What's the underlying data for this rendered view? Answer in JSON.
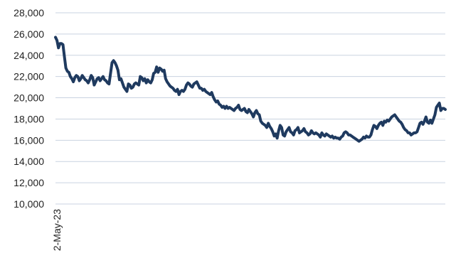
{
  "chart_data": {
    "type": "line",
    "title": "",
    "xlabel": "",
    "ylabel": "",
    "x_tick_labels": [
      "2-May-23"
    ],
    "y_ticks": [
      10000,
      12000,
      14000,
      16000,
      18000,
      20000,
      22000,
      24000,
      26000,
      28000
    ],
    "y_tick_labels": [
      "10,000",
      "12,000",
      "14,000",
      "16,000",
      "18,000",
      "20,000",
      "22,000",
      "24,000",
      "26,000",
      "28,000"
    ],
    "ylim": [
      10000,
      28000
    ],
    "grid": true,
    "legend": "none",
    "line_color": "#1f3a5f",
    "series": [
      {
        "values": [
          25700,
          25400,
          24700,
          25100,
          25100,
          25000,
          23900,
          22800,
          22500,
          22400,
          22000,
          21800,
          21500,
          21900,
          22100,
          22000,
          21600,
          21800,
          22100,
          21900,
          21700,
          21600,
          21400,
          21700,
          22100,
          21900,
          21200,
          21500,
          21800,
          21900,
          21600,
          21800,
          22000,
          21700,
          21600,
          21400,
          21300,
          22300,
          23300,
          23500,
          23300,
          23000,
          22600,
          21700,
          21800,
          21400,
          21000,
          20800,
          20600,
          21300,
          21200,
          20900,
          21000,
          21300,
          21400,
          21300,
          21200,
          22000,
          21900,
          21600,
          21800,
          21400,
          21700,
          21500,
          21400,
          21700,
          22300,
          22400,
          22900,
          22400,
          22800,
          22700,
          22500,
          22600,
          21800,
          21500,
          21300,
          21100,
          21000,
          20900,
          20700,
          20600,
          20800,
          20300,
          20600,
          20700,
          20600,
          20800,
          21200,
          21400,
          21300,
          21100,
          21000,
          21300,
          21400,
          21500,
          21200,
          20900,
          20900,
          20700,
          20800,
          20600,
          20500,
          20400,
          20300,
          20500,
          20100,
          19800,
          19600,
          19700,
          19400,
          19300,
          19100,
          19200,
          19000,
          19200,
          19000,
          19100,
          19000,
          18900,
          18800,
          19000,
          19100,
          19300,
          18900,
          18800,
          18900,
          19000,
          18700,
          18600,
          18900,
          18700,
          18500,
          18200,
          18600,
          18800,
          18500,
          18400,
          17800,
          17600,
          17500,
          17400,
          17200,
          17600,
          17300,
          17100,
          16800,
          16400,
          16600,
          16200,
          16900,
          17400,
          17200,
          16500,
          16400,
          16800,
          17000,
          17200,
          16800,
          16700,
          16500,
          16900,
          17000,
          17200,
          16700,
          16800,
          16900,
          17100,
          16800,
          16700,
          16500,
          16600,
          16900,
          16700,
          16600,
          16700,
          16600,
          16500,
          16300,
          16700,
          16500,
          16400,
          16600,
          16500,
          16400,
          16300,
          16400,
          16200,
          16300,
          16200,
          16200,
          16100,
          16300,
          16400,
          16700,
          16800,
          16700,
          16500,
          16500,
          16400,
          16300,
          16200,
          16100,
          16000,
          15900,
          16000,
          16100,
          16300,
          16200,
          16400,
          16300,
          16300,
          16500,
          17000,
          17400,
          17300,
          17100,
          17400,
          17600,
          17700,
          17400,
          17800,
          17700,
          17900,
          17800,
          18000,
          18200,
          18300,
          18400,
          18200,
          18000,
          17800,
          17700,
          17500,
          17200,
          17000,
          16900,
          16700,
          16700,
          16500,
          16600,
          16700,
          16700,
          16800,
          17200,
          17600,
          17700,
          17500,
          17800,
          18200,
          17700,
          17600,
          17900,
          17600,
          18000,
          18400,
          19100,
          19300,
          19500,
          18800,
          19000,
          19000,
          18900
        ]
      }
    ]
  }
}
